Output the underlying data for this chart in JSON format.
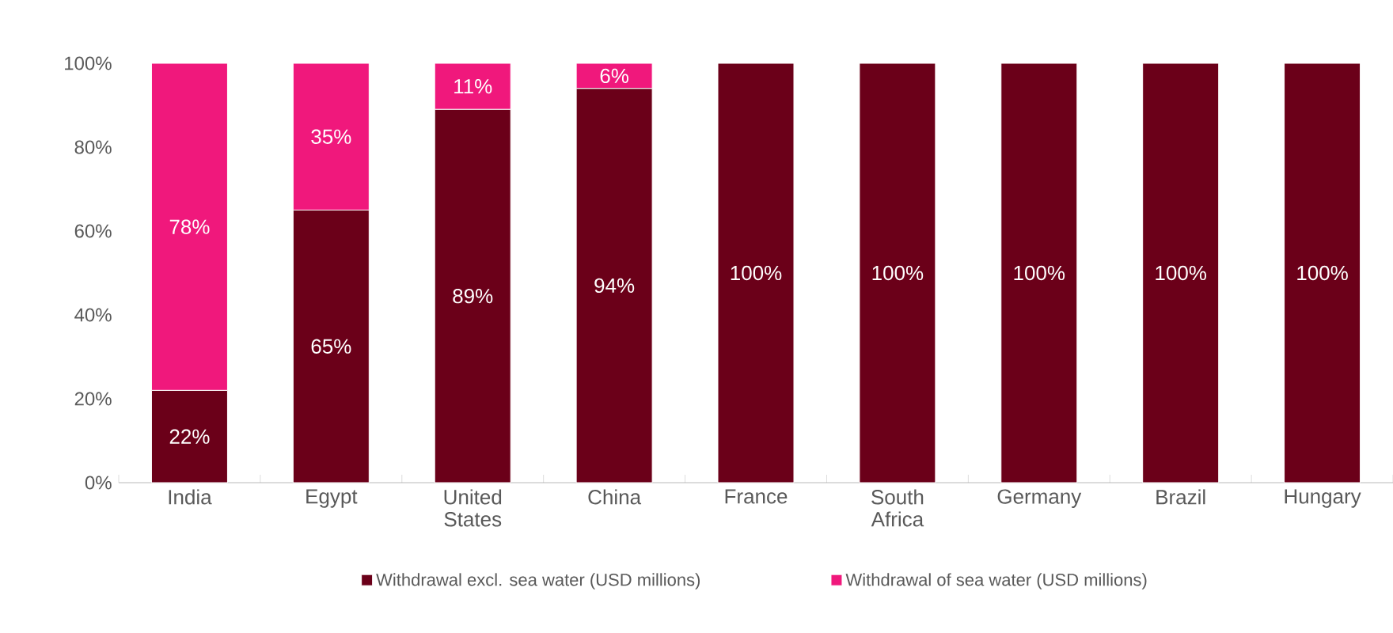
{
  "chart_data": {
    "type": "bar",
    "stacked": true,
    "categories": [
      "India",
      "Egypt",
      "United States",
      "China",
      "France",
      "South Africa",
      "Germany",
      "Brazil",
      "Hungary"
    ],
    "series": [
      {
        "name": "Withdrawal excl. sea water (USD millions)",
        "color": "#6b0019",
        "values": [
          22,
          65,
          89,
          94,
          100,
          100,
          100,
          100,
          100
        ],
        "value_labels": [
          "22%",
          "65%",
          "89%",
          "94%",
          "100%",
          "100%",
          "100%",
          "100%",
          "100%"
        ]
      },
      {
        "name": "Withdrawal of sea water (USD millions)",
        "color": "#f0187c",
        "values": [
          78,
          35,
          11,
          6,
          0,
          0,
          0,
          0,
          0
        ],
        "value_labels": [
          "78%",
          "35%",
          "11%",
          "6%",
          null,
          null,
          null,
          null,
          null
        ]
      }
    ],
    "ylim": [
      0,
      100
    ],
    "yticks": [
      {
        "value": 0,
        "label": "0%"
      },
      {
        "value": 20,
        "label": "20%"
      },
      {
        "value": 40,
        "label": "40%"
      },
      {
        "value": 60,
        "label": "60%"
      },
      {
        "value": 80,
        "label": "80%"
      },
      {
        "value": 100,
        "label": "100%"
      }
    ],
    "legend": "bottom"
  }
}
